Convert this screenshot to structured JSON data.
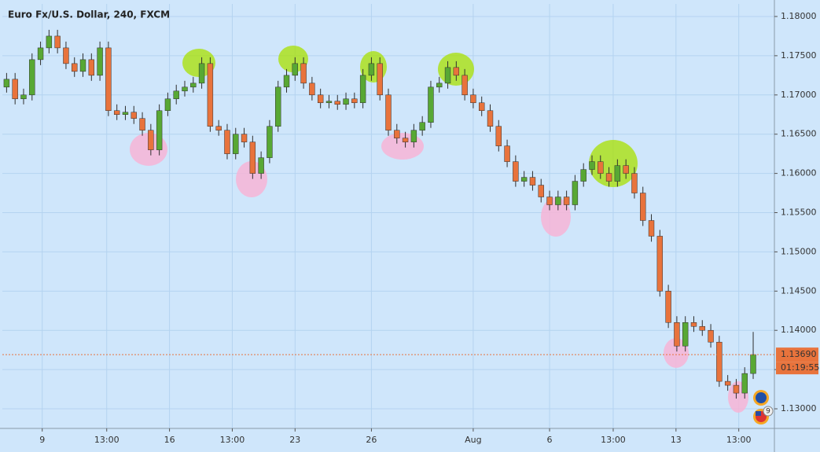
{
  "chart_data": {
    "type": "candlestick",
    "title": "Euro Fx/U.S. Dollar, 240, FXCM",
    "colors": {
      "up": "#58a834",
      "down": "#e8733c",
      "wick": "#2e2e2e",
      "background": "#cfe6fb",
      "grid": "#b4d3f0",
      "price_line": "#e8733c"
    },
    "grid": true,
    "ylim": [
      1.1275,
      1.1816
    ],
    "yticks": [
      {
        "value": 1.13,
        "label": "1.13000"
      },
      {
        "value": 1.135,
        "label": "1.13500"
      },
      {
        "value": 1.14,
        "label": "1.14000"
      },
      {
        "value": 1.145,
        "label": "1.14500"
      },
      {
        "value": 1.15,
        "label": "1.15000"
      },
      {
        "value": 1.155,
        "label": "1.15500"
      },
      {
        "value": 1.16,
        "label": "1.16000"
      },
      {
        "value": 1.165,
        "label": "1.16500"
      },
      {
        "value": 1.17,
        "label": "1.17000"
      },
      {
        "value": 1.175,
        "label": "1.17500"
      },
      {
        "value": 1.18,
        "label": "1.18000"
      }
    ],
    "xlim": [
      -0.5,
      90.5
    ],
    "xticks": [
      {
        "value": 4.2,
        "label": "9"
      },
      {
        "value": 11.8,
        "label": "13:00"
      },
      {
        "value": 19.2,
        "label": "16"
      },
      {
        "value": 26.6,
        "label": "13:00"
      },
      {
        "value": 34,
        "label": "23"
      },
      {
        "value": 43,
        "label": "26"
      },
      {
        "value": 55,
        "label": "Aug"
      },
      {
        "value": 64,
        "label": "6"
      },
      {
        "value": 71.5,
        "label": "13:00"
      },
      {
        "value": 78.9,
        "label": "13"
      },
      {
        "value": 86.3,
        "label": "13:00"
      }
    ],
    "ohlc": [
      [
        1.171,
        1.1728,
        1.1703,
        1.172
      ],
      [
        1.172,
        1.1728,
        1.1688,
        1.1695
      ],
      [
        1.1695,
        1.1708,
        1.1688,
        1.17
      ],
      [
        1.17,
        1.1753,
        1.1693,
        1.1745
      ],
      [
        1.1745,
        1.1768,
        1.1738,
        1.176
      ],
      [
        1.176,
        1.1783,
        1.1753,
        1.1775
      ],
      [
        1.1775,
        1.1783,
        1.1753,
        1.176
      ],
      [
        1.176,
        1.1768,
        1.1733,
        1.174
      ],
      [
        1.174,
        1.1748,
        1.1723,
        1.173
      ],
      [
        1.173,
        1.1753,
        1.1723,
        1.1745
      ],
      [
        1.1745,
        1.1753,
        1.1718,
        1.1725
      ],
      [
        1.1725,
        1.1768,
        1.1718,
        1.176
      ],
      [
        1.176,
        1.1768,
        1.1673,
        1.168
      ],
      [
        1.168,
        1.1688,
        1.1668,
        1.1675
      ],
      [
        1.1675,
        1.1686,
        1.1668,
        1.1678
      ],
      [
        1.1678,
        1.1686,
        1.1663,
        1.167
      ],
      [
        1.167,
        1.1678,
        1.1648,
        1.1655
      ],
      [
        1.1655,
        1.1663,
        1.1623,
        1.163
      ],
      [
        1.163,
        1.1688,
        1.1623,
        1.168
      ],
      [
        1.168,
        1.1703,
        1.1673,
        1.1695
      ],
      [
        1.1695,
        1.1713,
        1.1688,
        1.1705
      ],
      [
        1.1705,
        1.1718,
        1.1698,
        1.171
      ],
      [
        1.171,
        1.1723,
        1.1703,
        1.1715
      ],
      [
        1.1715,
        1.1748,
        1.1708,
        1.174
      ],
      [
        1.174,
        1.1748,
        1.1653,
        1.166
      ],
      [
        1.166,
        1.1668,
        1.1648,
        1.1655
      ],
      [
        1.1655,
        1.1663,
        1.1618,
        1.1625
      ],
      [
        1.1625,
        1.1658,
        1.1618,
        1.165
      ],
      [
        1.165,
        1.1658,
        1.1633,
        1.164
      ],
      [
        1.164,
        1.1648,
        1.1593,
        1.16
      ],
      [
        1.16,
        1.1628,
        1.1593,
        1.162
      ],
      [
        1.162,
        1.1668,
        1.1613,
        1.166
      ],
      [
        1.166,
        1.1718,
        1.1653,
        1.171
      ],
      [
        1.171,
        1.1733,
        1.1703,
        1.1725
      ],
      [
        1.1725,
        1.1748,
        1.1718,
        1.174
      ],
      [
        1.174,
        1.1748,
        1.1708,
        1.1715
      ],
      [
        1.1715,
        1.1723,
        1.1693,
        1.17
      ],
      [
        1.17,
        1.1708,
        1.1683,
        1.169
      ],
      [
        1.169,
        1.17,
        1.1683,
        1.1692
      ],
      [
        1.1692,
        1.17,
        1.1681,
        1.1688
      ],
      [
        1.1688,
        1.1703,
        1.1681,
        1.1695
      ],
      [
        1.1695,
        1.1703,
        1.1683,
        1.169
      ],
      [
        1.169,
        1.1733,
        1.1683,
        1.1725
      ],
      [
        1.1725,
        1.1748,
        1.1718,
        1.174
      ],
      [
        1.174,
        1.1748,
        1.1693,
        1.17
      ],
      [
        1.17,
        1.1708,
        1.1648,
        1.1655
      ],
      [
        1.1655,
        1.1663,
        1.1638,
        1.1645
      ],
      [
        1.1645,
        1.1653,
        1.1633,
        1.164
      ],
      [
        1.164,
        1.1663,
        1.1633,
        1.1655
      ],
      [
        1.1655,
        1.1673,
        1.1648,
        1.1665
      ],
      [
        1.1665,
        1.1718,
        1.1658,
        1.171
      ],
      [
        1.171,
        1.1723,
        1.1703,
        1.1715
      ],
      [
        1.1715,
        1.1743,
        1.1708,
        1.1735
      ],
      [
        1.1735,
        1.1743,
        1.1718,
        1.1725
      ],
      [
        1.1725,
        1.1733,
        1.1693,
        1.17
      ],
      [
        1.17,
        1.1708,
        1.1683,
        1.169
      ],
      [
        1.169,
        1.1698,
        1.1673,
        1.168
      ],
      [
        1.168,
        1.1688,
        1.1653,
        1.166
      ],
      [
        1.166,
        1.1668,
        1.1628,
        1.1635
      ],
      [
        1.1635,
        1.1643,
        1.1608,
        1.1615
      ],
      [
        1.1615,
        1.1623,
        1.1583,
        1.159
      ],
      [
        1.159,
        1.1603,
        1.1583,
        1.1595
      ],
      [
        1.1595,
        1.1603,
        1.1578,
        1.1585
      ],
      [
        1.1585,
        1.1593,
        1.1563,
        1.157
      ],
      [
        1.157,
        1.1578,
        1.1553,
        1.156
      ],
      [
        1.156,
        1.1578,
        1.1553,
        1.157
      ],
      [
        1.157,
        1.1578,
        1.1553,
        1.156
      ],
      [
        1.156,
        1.1598,
        1.1553,
        1.159
      ],
      [
        1.159,
        1.1613,
        1.1583,
        1.1605
      ],
      [
        1.1605,
        1.1623,
        1.1598,
        1.1615
      ],
      [
        1.1615,
        1.1623,
        1.1593,
        1.16
      ],
      [
        1.16,
        1.1608,
        1.1583,
        1.159
      ],
      [
        1.159,
        1.1618,
        1.1583,
        1.161
      ],
      [
        1.161,
        1.1618,
        1.1593,
        1.16
      ],
      [
        1.16,
        1.1608,
        1.1568,
        1.1575
      ],
      [
        1.1575,
        1.1583,
        1.1533,
        1.154
      ],
      [
        1.154,
        1.1548,
        1.1513,
        1.152
      ],
      [
        1.152,
        1.1528,
        1.1443,
        1.145
      ],
      [
        1.145,
        1.1458,
        1.1403,
        1.141
      ],
      [
        1.141,
        1.1418,
        1.1373,
        1.138
      ],
      [
        1.138,
        1.1418,
        1.1373,
        1.141
      ],
      [
        1.141,
        1.1418,
        1.1398,
        1.1405
      ],
      [
        1.1405,
        1.1413,
        1.1393,
        1.14
      ],
      [
        1.14,
        1.1408,
        1.1378,
        1.1385
      ],
      [
        1.1385,
        1.1393,
        1.1328,
        1.1335
      ],
      [
        1.1335,
        1.1343,
        1.1323,
        1.133
      ],
      [
        1.133,
        1.1338,
        1.1313,
        1.132
      ],
      [
        1.132,
        1.1353,
        1.1313,
        1.1345
      ],
      [
        1.1345,
        1.1398,
        1.1338,
        1.1369
      ]
    ],
    "last_price": {
      "value": 1.1369,
      "label": "1.13690"
    },
    "countdown": "01:19:55",
    "events_badge": "9"
  }
}
